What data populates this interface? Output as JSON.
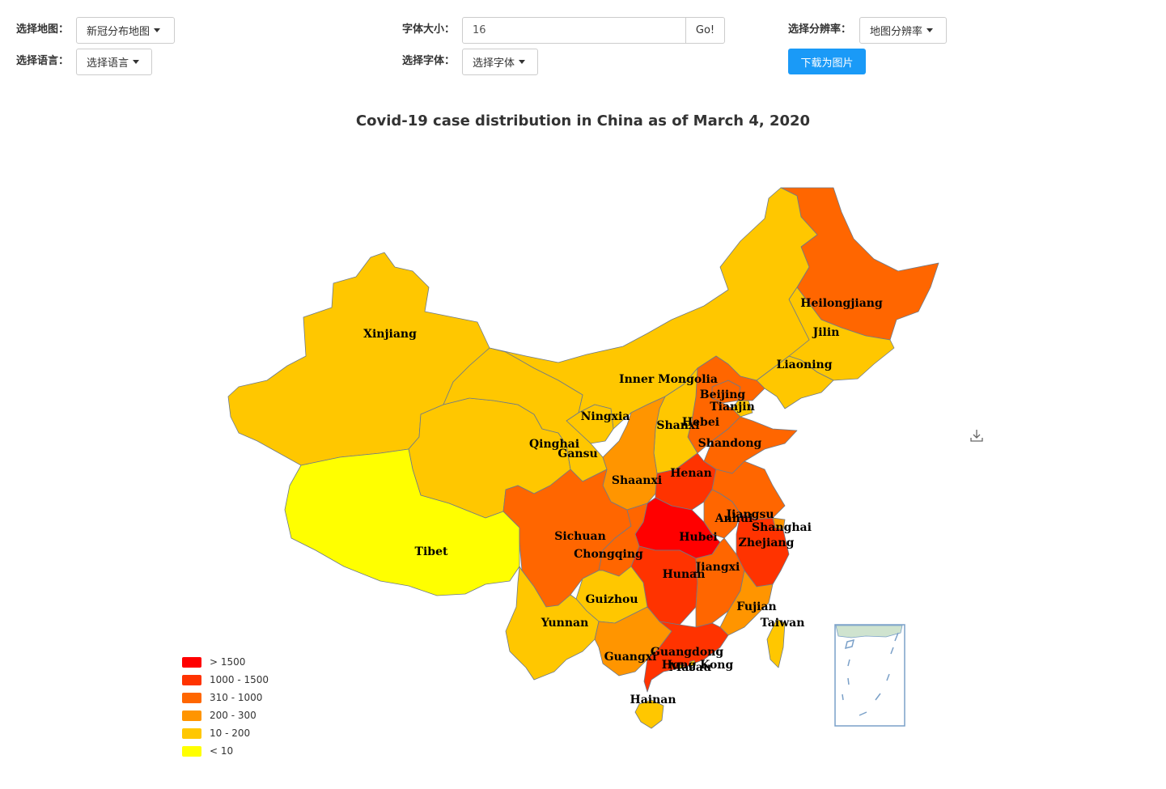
{
  "controls": {
    "map_select_label": "选择地图：",
    "map_select_value": "新冠分布地图",
    "language_select_label": "选择语言：",
    "language_select_value": "选择语言",
    "font_size_label": "字体大小：",
    "font_size_value": "16",
    "go_label": "Go!",
    "font_select_label": "选择字体：",
    "font_select_value": "选择字体",
    "resolution_label": "选择分辨率：",
    "resolution_value": "地图分辨率",
    "download_label": "下载为图片"
  },
  "map": {
    "title": "Covid-19 case distribution in China as of March 4, 2020",
    "save_icon": "download-icon",
    "legend": [
      {
        "label": "> 1500",
        "color": "#ff0000"
      },
      {
        "label": "1000 - 1500",
        "color": "#ff3300"
      },
      {
        "label": "310 - 1000",
        "color": "#ff6600"
      },
      {
        "label": "200 - 300",
        "color": "#ff9500"
      },
      {
        "label": "10 - 200",
        "color": "#ffc700"
      },
      {
        "label": "< 10",
        "color": "#ffff00"
      }
    ],
    "provinces": [
      {
        "name": "Heilongjiang",
        "color": "#ff6600"
      },
      {
        "name": "Jilin",
        "color": "#ffc700"
      },
      {
        "name": "Liaoning",
        "color": "#ffc700"
      },
      {
        "name": "Inner Mongolia",
        "color": "#ffc700"
      },
      {
        "name": "Beijing",
        "color": "#ff6600"
      },
      {
        "name": "Tianjin",
        "color": "#ffc700"
      },
      {
        "name": "Hebei",
        "color": "#ff6600"
      },
      {
        "name": "Shanxi",
        "color": "#ffc700"
      },
      {
        "name": "Shandong",
        "color": "#ff6600"
      },
      {
        "name": "Xinjiang",
        "color": "#ffc700"
      },
      {
        "name": "Ningxia",
        "color": "#ffc700"
      },
      {
        "name": "Qinghai",
        "color": "#ffc700"
      },
      {
        "name": "Gansu",
        "color": "#ffc700"
      },
      {
        "name": "Shaanxi",
        "color": "#ff9500"
      },
      {
        "name": "Henan",
        "color": "#ff3300"
      },
      {
        "name": "Jiangsu",
        "color": "#ff6600"
      },
      {
        "name": "Anhui",
        "color": "#ff6600"
      },
      {
        "name": "Shanghai",
        "color": "#ff9500"
      },
      {
        "name": "Hubei",
        "color": "#ff0000"
      },
      {
        "name": "Zhejiang",
        "color": "#ff3300"
      },
      {
        "name": "Tibet",
        "color": "#ffff00"
      },
      {
        "name": "Sichuan",
        "color": "#ff6600"
      },
      {
        "name": "Chongqing",
        "color": "#ff6600"
      },
      {
        "name": "Hunan",
        "color": "#ff3300"
      },
      {
        "name": "Jiangxi",
        "color": "#ff6600"
      },
      {
        "name": "Guizhou",
        "color": "#ffc700"
      },
      {
        "name": "Fujian",
        "color": "#ff9500"
      },
      {
        "name": "Taiwan",
        "color": "#ffc700"
      },
      {
        "name": "Yunnan",
        "color": "#ffc700"
      },
      {
        "name": "Guangxi",
        "color": "#ff9500"
      },
      {
        "name": "Guangdong",
        "color": "#ff3300"
      },
      {
        "name": "Hong Kong",
        "color": "#ffc700"
      },
      {
        "name": "Macau",
        "color": "#ffc700"
      },
      {
        "name": "Hainan",
        "color": "#ffc700"
      }
    ]
  }
}
